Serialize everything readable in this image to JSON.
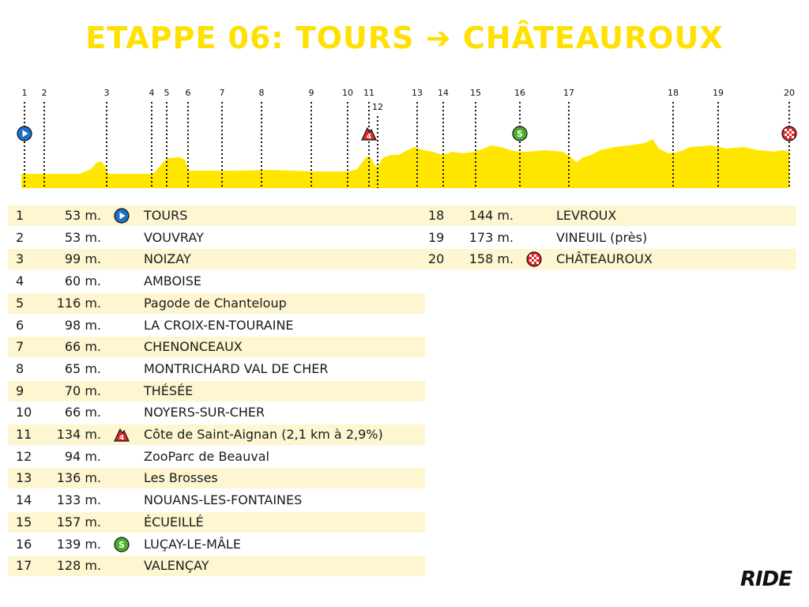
{
  "title": "ETAPPE 06: TOURS ➔ CHÂTEAUROUX",
  "logo": "RIDE",
  "colors": {
    "title": "#ffe000",
    "profile_fill": "#ffe600",
    "row_alt": "#fdf6d0",
    "start_icon": "#1f6fc5",
    "climb_icon": "#e0262b",
    "sprint_icon": "#4caf2b",
    "finish_icon": "#e0262b"
  },
  "chart_data": {
    "type": "area",
    "title": "ETAPPE 06: TOURS ➔ CHÂTEAUROUX",
    "checkpoint_labels": [
      "1",
      "2",
      "3",
      "4",
      "5",
      "6",
      "7",
      "8",
      "9",
      "10",
      "11",
      "12",
      "13",
      "14",
      "15",
      "16",
      "17",
      "18",
      "19",
      "20"
    ],
    "icons": [
      {
        "checkpoint": "1",
        "type": "start",
        "icon": "play-icon"
      },
      {
        "checkpoint": "11",
        "type": "climb",
        "category": "4",
        "icon": "climb-cat4-icon"
      },
      {
        "checkpoint": "16",
        "type": "sprint",
        "label": "S",
        "icon": "sprint-icon"
      },
      {
        "checkpoint": "20",
        "type": "finish",
        "icon": "checkered-flag-icon"
      }
    ]
  },
  "waypoints": [
    {
      "n": "1",
      "elev": "53 m.",
      "icon": "start",
      "name": "TOURS"
    },
    {
      "n": "2",
      "elev": "53 m.",
      "icon": "",
      "name": "VOUVRAY"
    },
    {
      "n": "3",
      "elev": "99 m.",
      "icon": "",
      "name": "NOIZAY"
    },
    {
      "n": "4",
      "elev": "60 m.",
      "icon": "",
      "name": "AMBOISE"
    },
    {
      "n": "5",
      "elev": "116 m.",
      "icon": "",
      "name": "Pagode de Chanteloup"
    },
    {
      "n": "6",
      "elev": "98 m.",
      "icon": "",
      "name": "LA CROIX-EN-TOURAINE"
    },
    {
      "n": "7",
      "elev": "66 m.",
      "icon": "",
      "name": "CHENONCEAUX"
    },
    {
      "n": "8",
      "elev": "65 m.",
      "icon": "",
      "name": "MONTRICHARD VAL DE CHER"
    },
    {
      "n": "9",
      "elev": "70 m.",
      "icon": "",
      "name": "THÉSÉE"
    },
    {
      "n": "10",
      "elev": "66 m.",
      "icon": "",
      "name": "NOYERS-SUR-CHER"
    },
    {
      "n": "11",
      "elev": "134 m.",
      "icon": "climb",
      "name": "Côte de Saint-Aignan (2,1 km à 2,9%)"
    },
    {
      "n": "12",
      "elev": "94 m.",
      "icon": "",
      "name": "ZooParc de Beauval"
    },
    {
      "n": "13",
      "elev": "136 m.",
      "icon": "",
      "name": "Les Brosses"
    },
    {
      "n": "14",
      "elev": "133 m.",
      "icon": "",
      "name": "NOUANS-LES-FONTAINES"
    },
    {
      "n": "15",
      "elev": "157 m.",
      "icon": "",
      "name": "ÉCUEILLÉ"
    },
    {
      "n": "16",
      "elev": "139 m.",
      "icon": "sprint",
      "name": "LUÇAY-LE-MÂLE"
    },
    {
      "n": "17",
      "elev": "128 m.",
      "icon": "",
      "name": "VALENÇAY"
    },
    {
      "n": "18",
      "elev": "144 m.",
      "icon": "",
      "name": "LEVROUX"
    },
    {
      "n": "19",
      "elev": "173 m.",
      "icon": "",
      "name": "VINEUIL (près)"
    },
    {
      "n": "20",
      "elev": "158 m.",
      "icon": "finish",
      "name": "CHÂTEAUROUX"
    }
  ]
}
